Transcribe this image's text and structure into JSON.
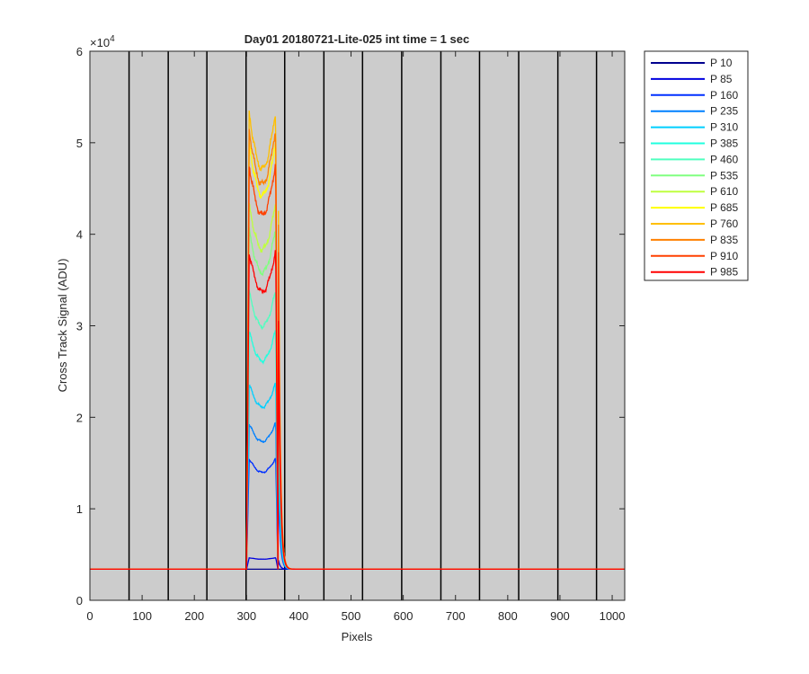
{
  "chart_data": {
    "type": "line",
    "title": "Day01 20180721-Lite-025 int time = 1 sec",
    "xlabel": "Pixels",
    "ylabel": "Cross Track Signal (ADU)",
    "y_multiplier_label": "×10",
    "y_multiplier_exp": "4",
    "xlim": [
      0,
      1024
    ],
    "ylim": [
      0,
      60000
    ],
    "x_ticks": [
      0,
      100,
      200,
      300,
      400,
      500,
      600,
      700,
      800,
      900,
      1000
    ],
    "x_tick_labels": [
      "0",
      "100",
      "200",
      "300",
      "400",
      "500",
      "600",
      "700",
      "800",
      "900",
      "1000"
    ],
    "y_ticks": [
      0,
      10000,
      20000,
      30000,
      40000,
      50000,
      60000
    ],
    "y_tick_labels": [
      "0",
      "1",
      "2",
      "3",
      "4",
      "5",
      "6"
    ],
    "background_color": "#cccccc",
    "vertical_lines_x": [
      75,
      150,
      224,
      299,
      373,
      448,
      522,
      597,
      672,
      746,
      821,
      896,
      970
    ],
    "legend_position": "outside-right",
    "baseline": 3400,
    "signal_start": 300,
    "signal_end": 360,
    "series": [
      {
        "name": "P 10",
        "color": "#00008f",
        "edge_peak": 3400
      },
      {
        "name": "P 85",
        "color": "#0000df",
        "edge_peak": 4700
      },
      {
        "name": "P 160",
        "color": "#0030ff",
        "edge_peak": 16000
      },
      {
        "name": "P 235",
        "color": "#0080ff",
        "edge_peak": 20000
      },
      {
        "name": "P 310",
        "color": "#00cfff",
        "edge_peak": 24500
      },
      {
        "name": "P 385",
        "color": "#20ffdf",
        "edge_peak": 30500
      },
      {
        "name": "P 460",
        "color": "#50ffbf",
        "edge_peak": 35000
      },
      {
        "name": "P 535",
        "color": "#80ff80",
        "edge_peak": 42000
      },
      {
        "name": "P 610",
        "color": "#bfff40",
        "edge_peak": 45000
      },
      {
        "name": "P 685",
        "color": "#ffff00",
        "edge_peak": 52000
      },
      {
        "name": "P 760",
        "color": "#ffbf00",
        "edge_peak": 55500
      },
      {
        "name": "P 835",
        "color": "#ff8000",
        "edge_peak": 53500
      },
      {
        "name": "P 910",
        "color": "#ff4000",
        "edge_peak": 49500
      },
      {
        "name": "P 985",
        "color": "#ff0000",
        "edge_peak": 39500
      }
    ]
  }
}
